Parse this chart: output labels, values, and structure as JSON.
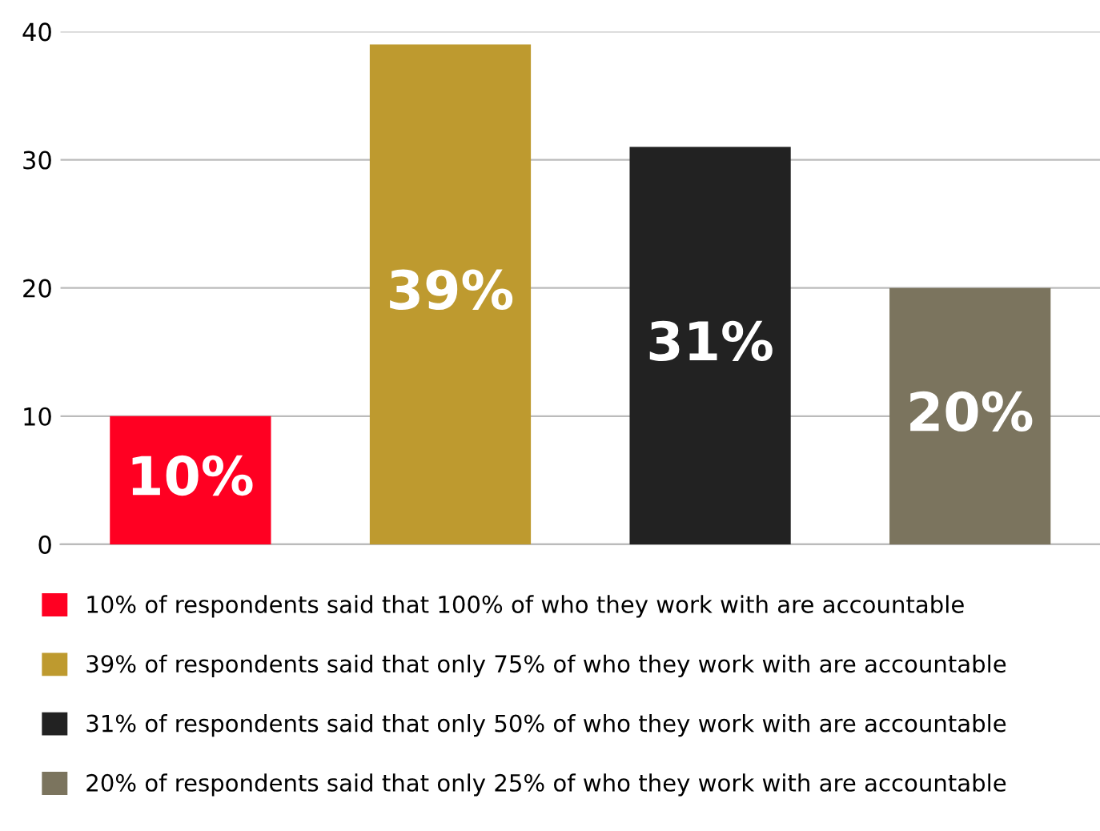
{
  "chart_data": {
    "type": "bar",
    "categories": [
      null,
      null,
      null,
      null
    ],
    "series": [
      {
        "name": "10% of respondents said that 100% of who they work with are accountable",
        "color": "#ff0022",
        "values": [
          10,
          null,
          null,
          null
        ],
        "value_labels": [
          "10%",
          null,
          null,
          null
        ]
      },
      {
        "name": "39% of respondents said that only 75% of who they work with are accountable",
        "color": "#be9a2f",
        "values": [
          null,
          39,
          null,
          null
        ],
        "value_labels": [
          null,
          "39%",
          null,
          null
        ]
      },
      {
        "name": "31% of respondents said that only 50% of who they work with are accountable",
        "color": "#222222",
        "values": [
          null,
          null,
          31,
          null
        ],
        "value_labels": [
          null,
          null,
          "31%",
          null
        ]
      },
      {
        "name": "20% of respondents said that only 25% of who they work with are accountable",
        "color": "#7b745e",
        "values": [
          null,
          null,
          null,
          20
        ],
        "value_labels": [
          null,
          null,
          null,
          "20%"
        ]
      }
    ],
    "ylim": [
      0,
      40
    ],
    "yticks": [
      0,
      10,
      20,
      30,
      40
    ],
    "grid": "y",
    "legend": "bottom"
  }
}
